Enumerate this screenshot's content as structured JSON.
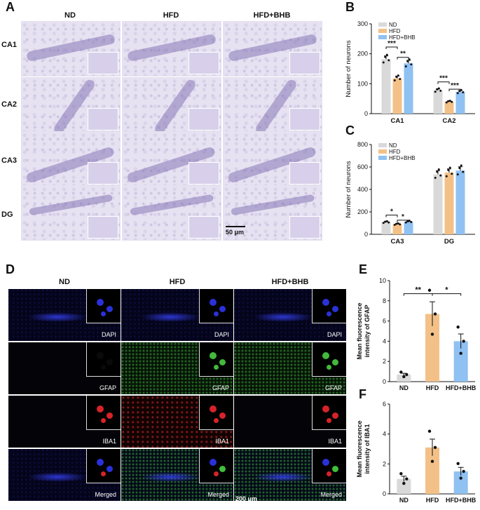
{
  "panels": {
    "A": "A",
    "B": "B",
    "C": "C",
    "D": "D",
    "E": "E",
    "F": "F"
  },
  "groups": [
    "ND",
    "HFD",
    "HFD+BHB"
  ],
  "panel_a": {
    "rows": [
      "CA1",
      "CA2",
      "CA3",
      "DG"
    ],
    "scale": "50 μm"
  },
  "panel_d": {
    "rows": [
      "DAPI",
      "GFAP",
      "IBA1",
      "Merged"
    ],
    "scale": "200 μm"
  },
  "colors": {
    "ND": "#d9d9d9",
    "HFD": "#f3c188",
    "HFD+BHB": "#8fc1f2",
    "histology": "#e7e2f1"
  },
  "chart_data": [
    {
      "id": "B",
      "type": "bar",
      "categories": [
        "CA1",
        "CA2"
      ],
      "series": [
        {
          "name": "ND",
          "values": [
            182,
            78
          ]
        },
        {
          "name": "HFD",
          "values": [
            118,
            40
          ]
        },
        {
          "name": "HFD+BHB",
          "values": [
            168,
            73
          ]
        }
      ],
      "ylabel": "Number of neurons",
      "ylim": [
        0,
        300
      ],
      "yticks": [
        0,
        100,
        200,
        300
      ],
      "legend": "top-left",
      "significance": [
        {
          "category": 0,
          "from": 0,
          "to": 1,
          "label": "***"
        },
        {
          "category": 0,
          "from": 1,
          "to": 2,
          "label": "**"
        },
        {
          "category": 1,
          "from": 0,
          "to": 1,
          "label": "***"
        },
        {
          "category": 1,
          "from": 1,
          "to": 2,
          "label": "***"
        }
      ]
    },
    {
      "id": "C",
      "type": "bar",
      "categories": [
        "CA3",
        "DG"
      ],
      "series": [
        {
          "name": "ND",
          "values": [
            108,
            535
          ]
        },
        {
          "name": "HFD",
          "values": [
            90,
            550
          ]
        },
        {
          "name": "HFD+BHB",
          "values": [
            112,
            568
          ]
        }
      ],
      "ylabel": "Number of neurons",
      "ylim": [
        0,
        800
      ],
      "yticks": [
        0,
        200,
        400,
        600,
        800
      ],
      "legend": "top-left",
      "significance": [
        {
          "category": 0,
          "from": 0,
          "to": 1,
          "label": "*"
        },
        {
          "category": 0,
          "from": 1,
          "to": 2,
          "label": "*"
        }
      ]
    },
    {
      "id": "E",
      "type": "bar",
      "categories": [
        "ND",
        "HFD",
        "HFD+BHB"
      ],
      "values": [
        0.7,
        6.7,
        4.0
      ],
      "ylabel": "Mean fluorescence intensity of GFAP",
      "ylim": [
        0,
        10
      ],
      "yticks": [
        0,
        2,
        4,
        6,
        8,
        10
      ],
      "significance": [
        {
          "from": 0,
          "to": 1,
          "label": "**"
        },
        {
          "from": 1,
          "to": 2,
          "label": "*"
        }
      ]
    },
    {
      "id": "F",
      "type": "bar",
      "categories": [
        "ND",
        "HFD",
        "HFD+BHB"
      ],
      "values": [
        1.0,
        3.1,
        1.5
      ],
      "ylabel": "Mean fluorescence intensity of IBA1",
      "ylim": [
        0,
        6
      ],
      "yticks": [
        0,
        2,
        4,
        6
      ]
    }
  ]
}
